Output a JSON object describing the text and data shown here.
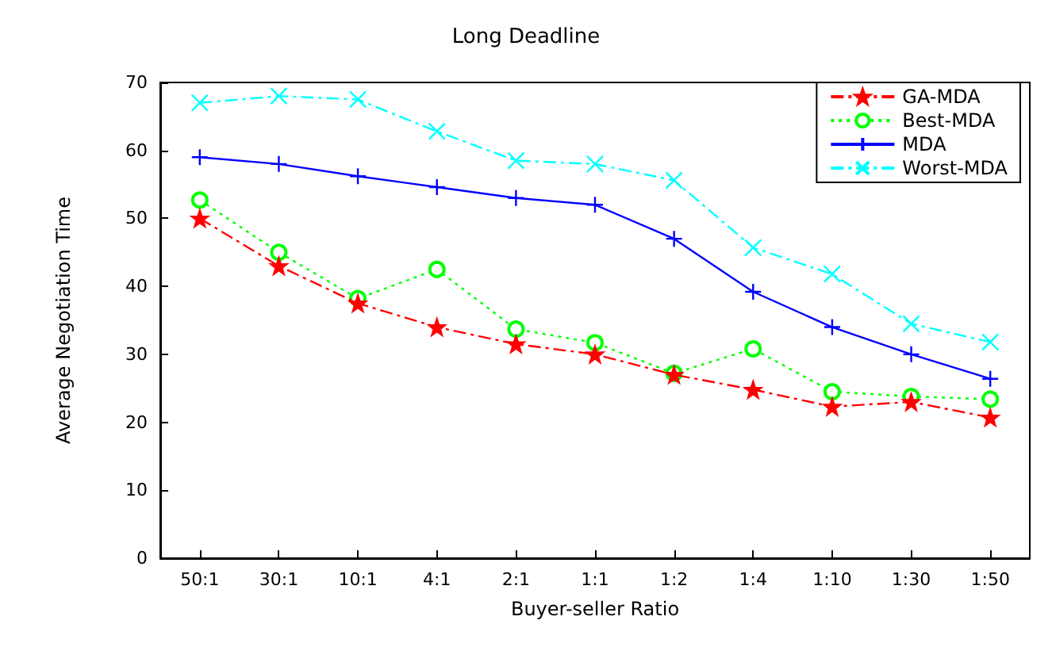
{
  "chart_data": {
    "type": "line",
    "title": "Long Deadline",
    "xlabel": "Buyer-seller Ratio",
    "ylabel": "Average Negotiation Time",
    "categories": [
      "50:1",
      "30:1",
      "10:1",
      "4:1",
      "2:1",
      "1:1",
      "1:2",
      "1:4",
      "1:10",
      "1:30",
      "1:50"
    ],
    "series": [
      {
        "name": "GA-MDA",
        "color": "#ff0000",
        "marker": "star",
        "line_style": "dashed",
        "values": [
          50,
          43,
          37.5,
          34,
          31.5,
          30,
          27,
          24.8,
          22.3,
          23,
          20.7
        ]
      },
      {
        "name": "Best-MDA",
        "color": "#00ff00",
        "marker": "circle",
        "line_style": "dotted",
        "values": [
          52.7,
          45,
          38.2,
          42.5,
          33.7,
          31.7,
          27.2,
          30.8,
          24.5,
          23.8,
          23.4
        ]
      },
      {
        "name": "MDA",
        "color": "#0000ff",
        "marker": "cross",
        "line_style": "solid",
        "values": [
          59,
          58,
          56.2,
          54.6,
          53,
          52,
          47,
          39.2,
          34,
          30,
          26.4
        ]
      },
      {
        "name": "Worst-MDA",
        "color": "#00ffff",
        "marker": "x",
        "line_style": "dashed",
        "values": [
          67,
          68,
          67.5,
          62.8,
          58.5,
          58,
          55.6,
          45.7,
          41.8,
          34.5,
          31.8
        ]
      }
    ],
    "ylim": [
      0,
      70
    ],
    "yticks": [
      0,
      10,
      20,
      30,
      40,
      50,
      60,
      70
    ],
    "grid": false,
    "legend": "top right"
  }
}
